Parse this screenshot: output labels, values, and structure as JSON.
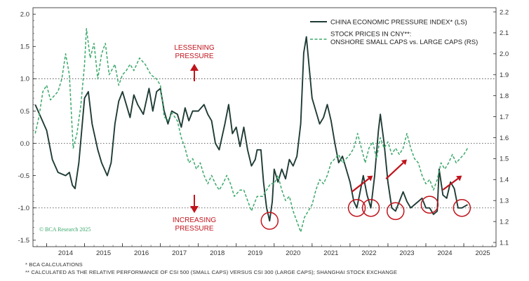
{
  "chart_data": {
    "type": "line",
    "x_tick_labels": [
      "2014",
      "2015",
      "2016",
      "2017",
      "2018",
      "2019",
      "2020",
      "2021",
      "2022",
      "2023",
      "2024",
      "2025"
    ],
    "left_axis": {
      "ylim": [
        -1.6,
        2.1
      ],
      "ticks": [
        "2.0",
        "1.5",
        "1.0",
        "0.5",
        "0.0",
        "-0.5",
        "-1.0",
        "-1.5"
      ]
    },
    "right_axis": {
      "ylim": [
        1.08,
        2.22
      ],
      "ticks": [
        "2.2",
        "2.1",
        "2.0",
        "1.9",
        "1.8",
        "1.7",
        "1.6",
        "1.5",
        "1.4",
        "1.3",
        "1.2",
        "1.1"
      ]
    },
    "reference_lines": {
      "left_axis_values": [
        1.0,
        0.0,
        -1.0
      ]
    },
    "grid": false,
    "legend_position": "top-right",
    "series": [
      {
        "name": "CHINA ECONOMIC PRESSURE INDEX* (LS)",
        "axis": "left",
        "color": "#1f3b35",
        "style": "solid",
        "points": [
          [
            2013.7,
            0.6
          ],
          [
            2013.85,
            0.4
          ],
          [
            2014.0,
            0.2
          ],
          [
            2014.15,
            -0.25
          ],
          [
            2014.3,
            -0.45
          ],
          [
            2014.5,
            -0.5
          ],
          [
            2014.6,
            -0.45
          ],
          [
            2014.68,
            -0.65
          ],
          [
            2014.75,
            -0.7
          ],
          [
            2014.85,
            -0.3
          ],
          [
            2015.0,
            0.7
          ],
          [
            2015.1,
            0.8
          ],
          [
            2015.2,
            0.3
          ],
          [
            2015.35,
            -0.1
          ],
          [
            2015.45,
            -0.3
          ],
          [
            2015.6,
            -0.5
          ],
          [
            2015.7,
            -0.3
          ],
          [
            2015.8,
            0.3
          ],
          [
            2015.9,
            0.65
          ],
          [
            2016.0,
            0.8
          ],
          [
            2016.1,
            0.6
          ],
          [
            2016.2,
            0.4
          ],
          [
            2016.3,
            0.75
          ],
          [
            2016.4,
            0.6
          ],
          [
            2016.55,
            0.45
          ],
          [
            2016.7,
            0.85
          ],
          [
            2016.8,
            0.5
          ],
          [
            2016.9,
            0.8
          ],
          [
            2017.0,
            0.85
          ],
          [
            2017.1,
            0.5
          ],
          [
            2017.2,
            0.3
          ],
          [
            2017.3,
            0.5
          ],
          [
            2017.45,
            0.45
          ],
          [
            2017.55,
            0.25
          ],
          [
            2017.65,
            0.55
          ],
          [
            2017.75,
            0.35
          ],
          [
            2017.85,
            0.5
          ],
          [
            2018.0,
            0.5
          ],
          [
            2018.15,
            0.6
          ],
          [
            2018.25,
            0.45
          ],
          [
            2018.35,
            0.35
          ],
          [
            2018.45,
            0.0
          ],
          [
            2018.55,
            -0.1
          ],
          [
            2018.7,
            0.3
          ],
          [
            2018.8,
            0.6
          ],
          [
            2018.9,
            0.15
          ],
          [
            2019.0,
            0.25
          ],
          [
            2019.1,
            -0.05
          ],
          [
            2019.2,
            0.25
          ],
          [
            2019.3,
            -0.1
          ],
          [
            2019.4,
            -0.35
          ],
          [
            2019.5,
            -0.25
          ],
          [
            2019.55,
            -0.1
          ],
          [
            2019.65,
            -0.1
          ],
          [
            2019.72,
            -0.6
          ],
          [
            2019.8,
            -1.0
          ],
          [
            2019.88,
            -1.2
          ],
          [
            2019.95,
            -0.9
          ],
          [
            2020.0,
            -0.4
          ],
          [
            2020.1,
            -0.6
          ],
          [
            2020.2,
            -0.4
          ],
          [
            2020.3,
            -0.55
          ],
          [
            2020.4,
            -0.25
          ],
          [
            2020.5,
            -0.35
          ],
          [
            2020.6,
            -0.2
          ],
          [
            2020.7,
            0.3
          ],
          [
            2020.78,
            1.4
          ],
          [
            2020.85,
            1.65
          ],
          [
            2020.92,
            1.2
          ],
          [
            2021.0,
            0.7
          ],
          [
            2021.1,
            0.5
          ],
          [
            2021.2,
            0.3
          ],
          [
            2021.3,
            0.4
          ],
          [
            2021.4,
            0.6
          ],
          [
            2021.5,
            0.35
          ],
          [
            2021.6,
            0.0
          ],
          [
            2021.7,
            -0.3
          ],
          [
            2021.8,
            -0.2
          ],
          [
            2021.9,
            -0.4
          ],
          [
            2022.0,
            -0.6
          ],
          [
            2022.1,
            -0.9
          ],
          [
            2022.18,
            -1.0
          ],
          [
            2022.25,
            -0.8
          ],
          [
            2022.35,
            -0.5
          ],
          [
            2022.45,
            -0.8
          ],
          [
            2022.55,
            -1.0
          ],
          [
            2022.65,
            -0.5
          ],
          [
            2022.75,
            0.2
          ],
          [
            2022.8,
            0.45
          ],
          [
            2022.9,
            0.0
          ],
          [
            2023.0,
            -0.6
          ],
          [
            2023.1,
            -1.0
          ],
          [
            2023.2,
            -1.05
          ],
          [
            2023.3,
            -0.9
          ],
          [
            2023.4,
            -0.75
          ],
          [
            2023.5,
            -0.9
          ],
          [
            2023.6,
            -1.0
          ],
          [
            2023.7,
            -0.95
          ],
          [
            2023.8,
            -0.9
          ],
          [
            2023.9,
            -0.85
          ],
          [
            2024.0,
            -1.0
          ],
          [
            2024.1,
            -1.0
          ],
          [
            2024.2,
            -1.1
          ],
          [
            2024.3,
            -1.05
          ],
          [
            2024.35,
            -0.4
          ],
          [
            2024.45,
            -0.8
          ],
          [
            2024.55,
            -0.85
          ],
          [
            2024.65,
            -0.6
          ],
          [
            2024.75,
            -0.7
          ],
          [
            2024.85,
            -1.0
          ],
          [
            2024.95,
            -1.0
          ],
          [
            2025.1,
            -0.95
          ]
        ]
      },
      {
        "name": "STOCK PRICES IN CNY**: ONSHORE SMALL CAPS vs. LARGE CAPS (RS)",
        "axis": "right",
        "color": "#3aa96a",
        "style": "dashed",
        "points": [
          [
            2013.7,
            1.62
          ],
          [
            2013.8,
            1.7
          ],
          [
            2013.9,
            1.82
          ],
          [
            2014.0,
            1.85
          ],
          [
            2014.1,
            1.78
          ],
          [
            2014.2,
            1.8
          ],
          [
            2014.3,
            1.82
          ],
          [
            2014.4,
            1.88
          ],
          [
            2014.5,
            2.0
          ],
          [
            2014.6,
            1.9
          ],
          [
            2014.7,
            1.55
          ],
          [
            2014.8,
            1.62
          ],
          [
            2014.9,
            1.75
          ],
          [
            2015.0,
            1.95
          ],
          [
            2015.05,
            2.12
          ],
          [
            2015.15,
            1.98
          ],
          [
            2015.25,
            2.05
          ],
          [
            2015.35,
            1.88
          ],
          [
            2015.45,
            2.0
          ],
          [
            2015.55,
            2.05
          ],
          [
            2015.65,
            1.9
          ],
          [
            2015.8,
            1.95
          ],
          [
            2015.9,
            1.85
          ],
          [
            2016.0,
            1.9
          ],
          [
            2016.1,
            1.92
          ],
          [
            2016.2,
            1.95
          ],
          [
            2016.3,
            1.92
          ],
          [
            2016.45,
            1.98
          ],
          [
            2016.6,
            1.95
          ],
          [
            2016.75,
            1.9
          ],
          [
            2016.9,
            1.88
          ],
          [
            2017.0,
            1.85
          ],
          [
            2017.1,
            1.7
          ],
          [
            2017.2,
            1.68
          ],
          [
            2017.3,
            1.72
          ],
          [
            2017.45,
            1.68
          ],
          [
            2017.55,
            1.6
          ],
          [
            2017.65,
            1.55
          ],
          [
            2017.75,
            1.48
          ],
          [
            2017.85,
            1.5
          ],
          [
            2017.95,
            1.45
          ],
          [
            2018.05,
            1.48
          ],
          [
            2018.15,
            1.42
          ],
          [
            2018.25,
            1.38
          ],
          [
            2018.35,
            1.42
          ],
          [
            2018.45,
            1.38
          ],
          [
            2018.55,
            1.35
          ],
          [
            2018.65,
            1.38
          ],
          [
            2018.75,
            1.42
          ],
          [
            2018.85,
            1.38
          ],
          [
            2018.95,
            1.32
          ],
          [
            2019.1,
            1.35
          ],
          [
            2019.2,
            1.35
          ],
          [
            2019.3,
            1.3
          ],
          [
            2019.4,
            1.25
          ],
          [
            2019.55,
            1.32
          ],
          [
            2019.7,
            1.32
          ],
          [
            2019.8,
            1.35
          ],
          [
            2019.9,
            1.38
          ],
          [
            2020.0,
            1.38
          ],
          [
            2020.1,
            1.42
          ],
          [
            2020.2,
            1.35
          ],
          [
            2020.3,
            1.3
          ],
          [
            2020.4,
            1.32
          ],
          [
            2020.5,
            1.25
          ],
          [
            2020.6,
            1.2
          ],
          [
            2020.7,
            1.15
          ],
          [
            2020.8,
            1.22
          ],
          [
            2020.9,
            1.25
          ],
          [
            2021.0,
            1.28
          ],
          [
            2021.1,
            1.35
          ],
          [
            2021.2,
            1.4
          ],
          [
            2021.3,
            1.38
          ],
          [
            2021.4,
            1.42
          ],
          [
            2021.5,
            1.48
          ],
          [
            2021.6,
            1.5
          ],
          [
            2021.7,
            1.52
          ],
          [
            2021.8,
            1.48
          ],
          [
            2021.9,
            1.5
          ],
          [
            2022.0,
            1.52
          ],
          [
            2022.1,
            1.55
          ],
          [
            2022.2,
            1.62
          ],
          [
            2022.3,
            1.55
          ],
          [
            2022.4,
            1.48
          ],
          [
            2022.5,
            1.55
          ],
          [
            2022.6,
            1.58
          ],
          [
            2022.7,
            1.5
          ],
          [
            2022.8,
            1.6
          ],
          [
            2022.9,
            1.55
          ],
          [
            2023.0,
            1.58
          ],
          [
            2023.1,
            1.52
          ],
          [
            2023.2,
            1.55
          ],
          [
            2023.3,
            1.52
          ],
          [
            2023.4,
            1.55
          ],
          [
            2023.5,
            1.62
          ],
          [
            2023.6,
            1.55
          ],
          [
            2023.7,
            1.5
          ],
          [
            2023.8,
            1.48
          ],
          [
            2023.9,
            1.42
          ],
          [
            2024.0,
            1.38
          ],
          [
            2024.1,
            1.4
          ],
          [
            2024.2,
            1.35
          ],
          [
            2024.3,
            1.4
          ],
          [
            2024.4,
            1.48
          ],
          [
            2024.5,
            1.45
          ],
          [
            2024.6,
            1.48
          ],
          [
            2024.7,
            1.52
          ],
          [
            2024.8,
            1.48
          ],
          [
            2024.9,
            1.5
          ],
          [
            2025.0,
            1.52
          ],
          [
            2025.1,
            1.55
          ]
        ]
      }
    ],
    "annotations": {
      "lessening": "LESSENING\nPRESSURE",
      "increasing": "INCREASING\nPRESSURE",
      "copyright": "© BCA Research 2025",
      "circles": [
        [
          2019.88,
          -1.2
        ],
        [
          2022.18,
          -1.0
        ],
        [
          2022.55,
          -1.0
        ],
        [
          2023.2,
          -1.05
        ],
        [
          2024.1,
          -0.95
        ],
        [
          2024.95,
          -1.0
        ]
      ],
      "arrows": [
        [
          2022.05,
          -0.75,
          2022.6,
          -0.5
        ],
        [
          2022.95,
          -0.55,
          2023.5,
          -0.25
        ],
        [
          2024.45,
          -0.72,
          2024.95,
          -0.5
        ]
      ]
    }
  },
  "footnotes": {
    "line1": "*  BCA CALCULATIONS",
    "line2": "** CALCULATED AS THE RELATIVE PERFORMANCE OF CSI 500 (SMALL CAPS) VERSUS CSI 300 (LARGE CAPS); SHANGHAI STOCK EXCHANGE"
  }
}
